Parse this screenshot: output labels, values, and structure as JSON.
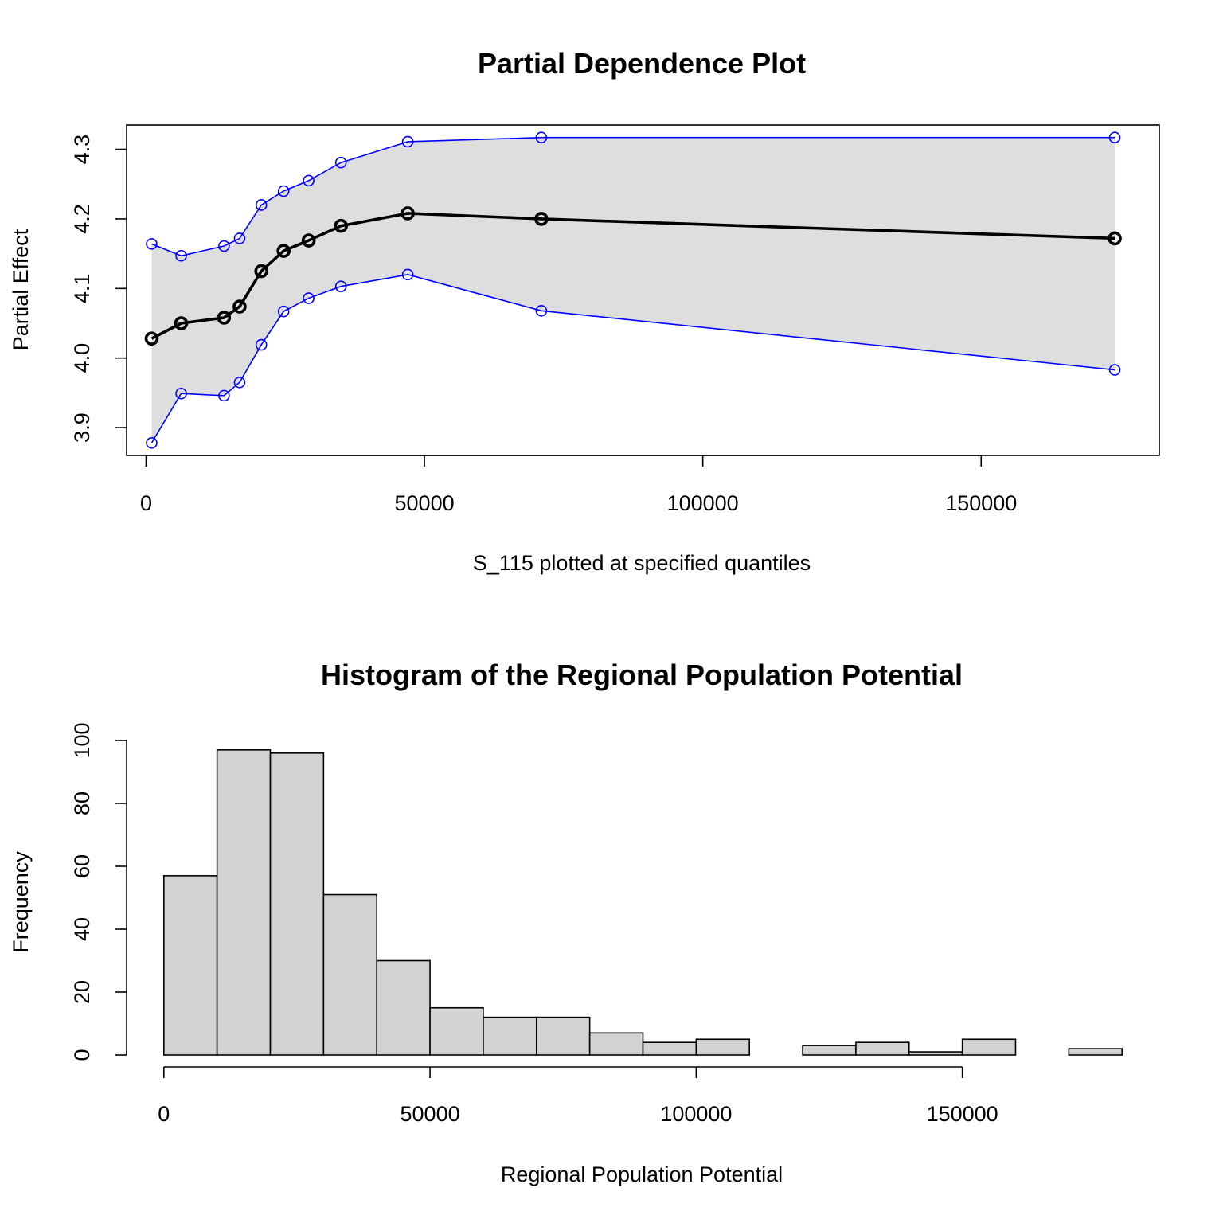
{
  "chart_data": [
    {
      "type": "line",
      "title": "Partial Dependence Plot",
      "xlabel": "S_115 plotted at specified quantiles",
      "ylabel": "Partial Effect",
      "xlim": [
        -3500,
        182000
      ],
      "ylim": [
        3.86,
        4.335
      ],
      "x_ticks": [
        0,
        50000,
        100000,
        150000
      ],
      "y_ticks": [
        3.9,
        4.0,
        4.1,
        4.2,
        4.3
      ],
      "x": [
        1000,
        6300,
        14000,
        16800,
        20700,
        24700,
        29200,
        35000,
        47000,
        71000,
        174000
      ],
      "series": [
        {
          "values": [
            4.028,
            4.05,
            4.058,
            4.074,
            4.125,
            4.154,
            4.169,
            4.19,
            4.208,
            4.2,
            4.172
          ],
          "color": "#000000"
        },
        {
          "values": [
            4.164,
            4.147,
            4.161,
            4.172,
            4.22,
            4.24,
            4.255,
            4.281,
            4.311,
            4.317,
            4.317
          ],
          "color": "#0000ff"
        },
        {
          "values": [
            3.878,
            3.949,
            3.946,
            3.965,
            4.019,
            4.067,
            4.086,
            4.103,
            4.12,
            4.068,
            3.983
          ],
          "color": "#0000ff"
        }
      ],
      "band_color": "#dedede",
      "grid": false
    },
    {
      "type": "bar",
      "title": "Histogram of the Regional Population Potential",
      "xlabel": "Regional Population Potential",
      "ylabel": "Frequency",
      "xlim": [
        -7000,
        187000
      ],
      "ylim": [
        0,
        100
      ],
      "x_ticks": [
        0,
        50000,
        100000,
        150000
      ],
      "y_ticks": [
        0,
        20,
        40,
        60,
        80,
        100
      ],
      "bin_width": 10000,
      "bin_starts": [
        0,
        10000,
        20000,
        30000,
        40000,
        50000,
        60000,
        70000,
        80000,
        90000,
        100000,
        110000,
        120000,
        130000,
        140000,
        150000,
        160000,
        170000
      ],
      "values": [
        57,
        97,
        96,
        51,
        30,
        15,
        12,
        12,
        7,
        4,
        5,
        0,
        3,
        4,
        1,
        5,
        0,
        2
      ],
      "bar_color": "#d3d3d3",
      "grid": false
    }
  ]
}
